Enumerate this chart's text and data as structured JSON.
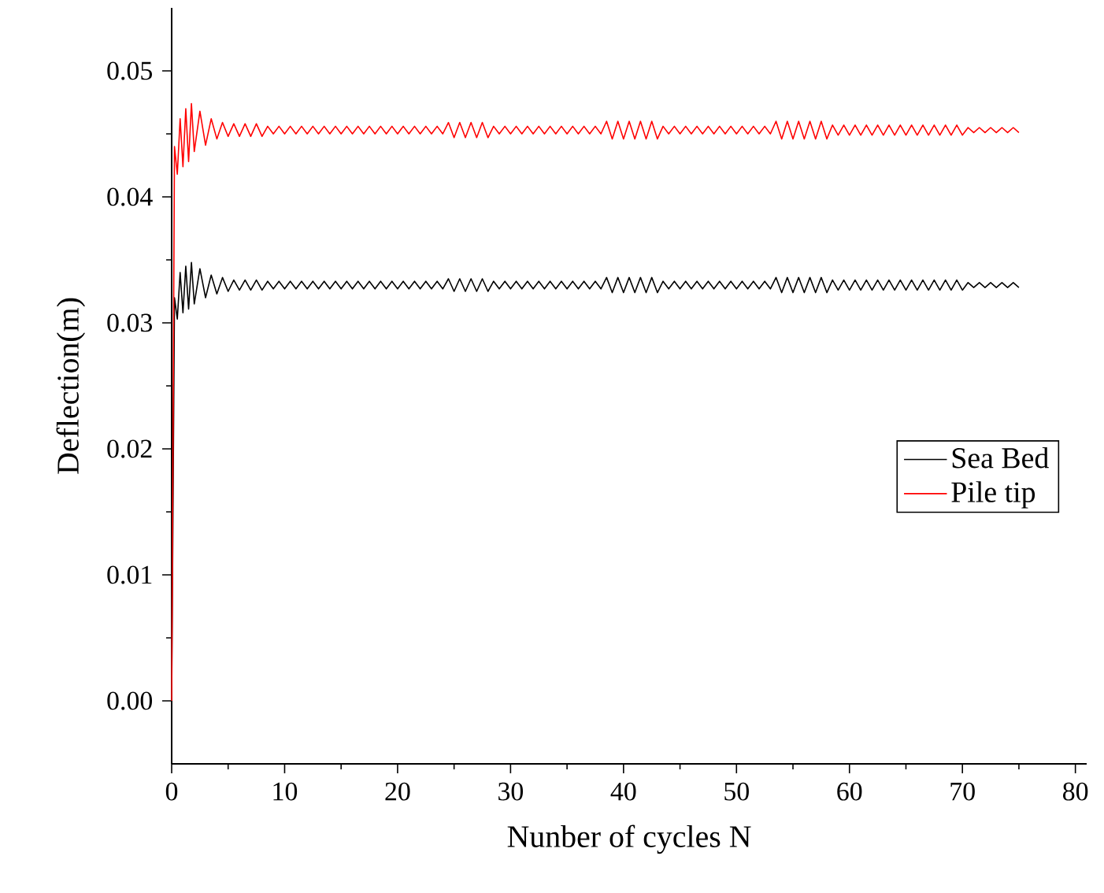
{
  "chart_data": {
    "type": "line",
    "xlabel": "Nunber of cycles N",
    "ylabel": "Deflection(m)",
    "xlim": [
      0,
      81
    ],
    "ylim": [
      -0.005,
      0.055
    ],
    "xticks": [
      0,
      10,
      20,
      30,
      40,
      50,
      60,
      70,
      80
    ],
    "yticks": [
      {
        "value": 0,
        "label": "0.00"
      },
      {
        "value": 0.01,
        "label": "0.01"
      },
      {
        "value": 0.02,
        "label": "0.02"
      },
      {
        "value": 0.03,
        "label": "0.03"
      },
      {
        "value": 0.04,
        "label": "0.04"
      },
      {
        "value": 0.05,
        "label": "0.05"
      }
    ],
    "legend": "right",
    "marker": "none",
    "x": [
      0,
      0.25,
      0.5,
      0.75,
      1,
      1.25,
      1.5,
      1.75,
      2,
      2.5,
      3,
      3.5,
      4,
      4.5,
      5,
      5.5,
      6,
      6.5,
      7,
      7.5,
      8,
      8.5,
      9,
      9.5,
      10,
      10.5,
      11,
      11.5,
      12,
      12.5,
      13,
      13.5,
      14,
      14.5,
      15,
      15.5,
      16,
      16.5,
      17,
      17.5,
      18,
      18.5,
      19,
      19.5,
      20,
      20.5,
      21,
      21.5,
      22,
      22.5,
      23,
      23.5,
      24,
      24.5,
      25,
      25.5,
      26,
      26.5,
      27,
      27.5,
      28,
      28.5,
      29,
      29.5,
      30,
      30.5,
      31,
      31.5,
      32,
      32.5,
      33,
      33.5,
      34,
      34.5,
      35,
      35.5,
      36,
      36.5,
      37,
      37.5,
      38,
      38.5,
      39,
      39.5,
      40,
      40.5,
      41,
      41.5,
      42,
      42.5,
      43,
      43.5,
      44,
      44.5,
      45,
      45.5,
      46,
      46.5,
      47,
      47.5,
      48,
      48.5,
      49,
      49.5,
      50,
      50.5,
      51,
      51.5,
      52,
      52.5,
      53,
      53.5,
      54,
      54.5,
      55,
      55.5,
      56,
      56.5,
      57,
      57.5,
      58,
      58.5,
      59,
      59.5,
      60,
      60.5,
      61,
      61.5,
      62,
      62.5,
      63,
      63.5,
      64,
      64.5,
      65,
      65.5,
      66,
      66.5,
      67,
      67.5,
      68,
      68.5,
      69,
      69.5,
      70,
      70.5,
      71,
      71.5,
      72,
      72.5,
      73,
      73.5,
      74,
      74.5,
      75
    ],
    "series": [
      {
        "name": "Sea Bed",
        "color": "#000000",
        "values": [
          0,
          0.032,
          0.0303,
          0.034,
          0.0308,
          0.0345,
          0.0311,
          0.0348,
          0.0315,
          0.0343,
          0.032,
          0.0338,
          0.0323,
          0.0336,
          0.0325,
          0.0334,
          0.0326,
          0.0334,
          0.0326,
          0.0334,
          0.0326,
          0.0333,
          0.0327,
          0.0333,
          0.0327,
          0.0333,
          0.0327,
          0.0333,
          0.0327,
          0.0333,
          0.0327,
          0.0333,
          0.0327,
          0.0333,
          0.0327,
          0.0333,
          0.0327,
          0.0333,
          0.0327,
          0.0333,
          0.0327,
          0.0333,
          0.0327,
          0.0333,
          0.0327,
          0.0333,
          0.0327,
          0.0333,
          0.0327,
          0.0333,
          0.0327,
          0.0333,
          0.0327,
          0.0335,
          0.0325,
          0.0335,
          0.0325,
          0.0335,
          0.0325,
          0.0335,
          0.0325,
          0.0333,
          0.0327,
          0.0333,
          0.0327,
          0.0333,
          0.0327,
          0.0333,
          0.0327,
          0.0333,
          0.0327,
          0.0333,
          0.0327,
          0.0333,
          0.0327,
          0.0333,
          0.0327,
          0.0333,
          0.0327,
          0.0333,
          0.0327,
          0.0336,
          0.0324,
          0.0336,
          0.0324,
          0.0336,
          0.0324,
          0.0336,
          0.0324,
          0.0336,
          0.0324,
          0.0333,
          0.0327,
          0.0333,
          0.0327,
          0.0333,
          0.0327,
          0.0333,
          0.0327,
          0.0333,
          0.0327,
          0.0333,
          0.0327,
          0.0333,
          0.0327,
          0.0333,
          0.0327,
          0.0333,
          0.0327,
          0.0333,
          0.0327,
          0.0336,
          0.0324,
          0.0336,
          0.0324,
          0.0336,
          0.0324,
          0.0336,
          0.0324,
          0.0336,
          0.0324,
          0.0334,
          0.0326,
          0.0334,
          0.0326,
          0.0334,
          0.0326,
          0.0334,
          0.0326,
          0.0334,
          0.0326,
          0.0334,
          0.0326,
          0.0334,
          0.0326,
          0.0334,
          0.0326,
          0.0334,
          0.0326,
          0.0334,
          0.0326,
          0.0334,
          0.0326,
          0.0334,
          0.0326,
          0.0332,
          0.0328,
          0.0332,
          0.0328,
          0.0332,
          0.0328,
          0.0332,
          0.0328,
          0.0332,
          0.0328
        ]
      },
      {
        "name": "Pile tip",
        "color": "#ff0000",
        "values": [
          0,
          0.044,
          0.0418,
          0.0462,
          0.0424,
          0.047,
          0.0428,
          0.0474,
          0.0436,
          0.0468,
          0.0441,
          0.0462,
          0.0446,
          0.0459,
          0.0448,
          0.0458,
          0.0448,
          0.0458,
          0.0448,
          0.0458,
          0.0448,
          0.0456,
          0.045,
          0.0456,
          0.045,
          0.0456,
          0.045,
          0.0456,
          0.045,
          0.0456,
          0.045,
          0.0456,
          0.045,
          0.0456,
          0.045,
          0.0456,
          0.045,
          0.0456,
          0.045,
          0.0456,
          0.045,
          0.0456,
          0.045,
          0.0456,
          0.045,
          0.0456,
          0.045,
          0.0456,
          0.045,
          0.0456,
          0.045,
          0.0456,
          0.045,
          0.0459,
          0.0447,
          0.0459,
          0.0447,
          0.0459,
          0.0447,
          0.0459,
          0.0447,
          0.0456,
          0.045,
          0.0456,
          0.045,
          0.0456,
          0.045,
          0.0456,
          0.045,
          0.0456,
          0.045,
          0.0456,
          0.045,
          0.0456,
          0.045,
          0.0456,
          0.045,
          0.0456,
          0.045,
          0.0456,
          0.045,
          0.046,
          0.0446,
          0.046,
          0.0446,
          0.046,
          0.0446,
          0.046,
          0.0446,
          0.046,
          0.0446,
          0.0456,
          0.045,
          0.0456,
          0.045,
          0.0456,
          0.045,
          0.0456,
          0.045,
          0.0456,
          0.045,
          0.0456,
          0.045,
          0.0456,
          0.045,
          0.0456,
          0.045,
          0.0456,
          0.045,
          0.0456,
          0.045,
          0.046,
          0.0446,
          0.046,
          0.0446,
          0.046,
          0.0446,
          0.046,
          0.0446,
          0.046,
          0.0446,
          0.0457,
          0.0449,
          0.0457,
          0.0449,
          0.0457,
          0.0449,
          0.0457,
          0.0449,
          0.0457,
          0.0449,
          0.0457,
          0.0449,
          0.0457,
          0.0449,
          0.0457,
          0.0449,
          0.0457,
          0.0449,
          0.0457,
          0.0449,
          0.0457,
          0.0449,
          0.0457,
          0.0449,
          0.0455,
          0.0451,
          0.0455,
          0.0451,
          0.0455,
          0.0451,
          0.0455,
          0.0451,
          0.0455,
          0.0451
        ]
      }
    ]
  }
}
